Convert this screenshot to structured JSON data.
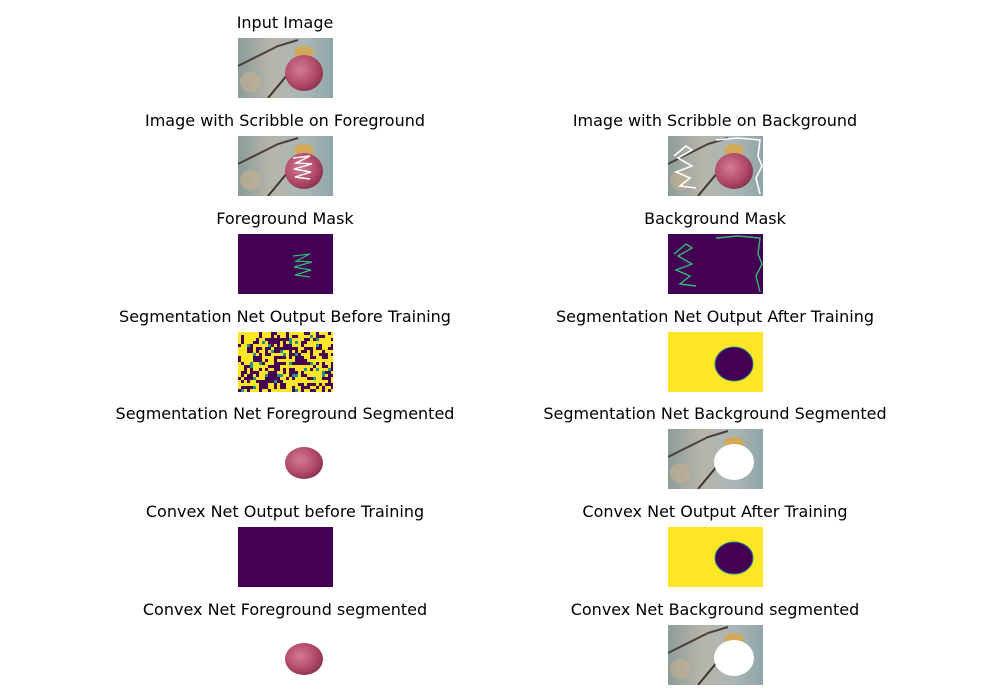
{
  "panels": [
    {
      "title": "Input Image"
    },
    {
      "title": "Image with Scribble on Foreground"
    },
    {
      "title": "Image with Scribble on Background"
    },
    {
      "title": "Foreground Mask"
    },
    {
      "title": "Background Mask"
    },
    {
      "title": "Segmentation Net Output Before Training"
    },
    {
      "title": "Segmentation Net Output After Training"
    },
    {
      "title": "Segmentation Net Foreground Segmented"
    },
    {
      "title": "Segmentation Net Background Segmented"
    },
    {
      "title": "Convex Net Output before Training"
    },
    {
      "title": "Convex Net Output After Training"
    },
    {
      "title": "Convex Net Foreground segmented"
    },
    {
      "title": "Convex Net Background segmented"
    }
  ],
  "colors": {
    "mask_background": "#440154",
    "mask_foreground": "#fde725",
    "scribble": "#35b779",
    "apple": "#b24a6a"
  }
}
